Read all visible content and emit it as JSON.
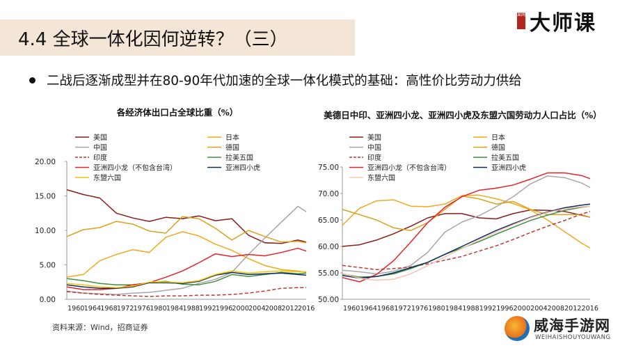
{
  "header": {
    "title": "4.4 全球一体化因何逆转？（三）",
    "logo_text": "大师课",
    "logo_seal": "某网"
  },
  "bullet": {
    "text": "二战后逐渐成型并在80-90年代加速的全球一体化模式的基础：高性价比劳动力供给"
  },
  "source": "资料来源：Wind，招商证券",
  "watermark": {
    "name": "威海手游网",
    "sub": "WEIHAISHOUYOUWANG"
  },
  "chart_data": [
    {
      "type": "line",
      "title": "各经济体出口占全球比重（%）",
      "ylim": [
        0,
        20
      ],
      "yticks": [
        "20.00",
        "15.00",
        "10.00",
        "5.00",
        "0.00"
      ],
      "xticks": [
        "1960",
        "1964",
        "1968",
        "1972",
        "1976",
        "1980",
        "1984",
        "1988",
        "1992",
        "1996",
        "2000",
        "2004",
        "2008",
        "2012",
        "2016"
      ],
      "x": [
        1960,
        1964,
        1968,
        1972,
        1976,
        1980,
        1984,
        1988,
        1992,
        1996,
        2000,
        2004,
        2008,
        2012,
        2016,
        2018
      ],
      "legend_position": "top",
      "series": [
        {
          "name": "美国",
          "color": "#8b1a1a",
          "dash": "",
          "values": [
            15.9,
            15.2,
            14.7,
            12.5,
            11.8,
            11.3,
            11.9,
            11.7,
            12.1,
            11.4,
            11.7,
            9.3,
            8.2,
            8.1,
            8.6,
            8.3
          ]
        },
        {
          "name": "日本",
          "color": "#f0a91f",
          "dash": "",
          "values": [
            3.2,
            3.6,
            5.6,
            6.5,
            7.2,
            6.8,
            9.0,
            9.8,
            9.2,
            8.0,
            7.1,
            5.9,
            4.9,
            4.3,
            4.1,
            3.9
          ]
        },
        {
          "name": "中国",
          "color": "#a6a6a6",
          "dash": "",
          "values": [
            1.2,
            0.9,
            0.8,
            0.7,
            0.9,
            1.0,
            1.3,
            1.6,
            2.3,
            2.9,
            3.9,
            6.5,
            8.9,
            11.2,
            13.5,
            12.7
          ]
        },
        {
          "name": "德国",
          "color": "#d9a21b",
          "dash": "",
          "values": [
            9.1,
            10.1,
            10.4,
            11.3,
            10.9,
            9.9,
            9.6,
            12.0,
            11.7,
            10.3,
            8.6,
            10.0,
            9.1,
            8.3,
            8.4,
            8.2
          ]
        },
        {
          "name": "印度",
          "color": "#c0392b",
          "dash": "5,3",
          "values": [
            1.1,
            0.9,
            0.7,
            0.6,
            0.5,
            0.4,
            0.5,
            0.5,
            0.6,
            0.6,
            0.7,
            0.9,
            1.2,
            1.6,
            1.7,
            1.7
          ]
        },
        {
          "name": "拉美五国",
          "color": "#3f8f3f",
          "dash": "",
          "values": [
            3.0,
            2.7,
            2.3,
            2.1,
            2.1,
            2.4,
            2.6,
            2.2,
            2.1,
            2.6,
            3.6,
            3.3,
            3.6,
            3.9,
            3.7,
            3.8
          ]
        },
        {
          "name": "亚洲四小龙（不包含台湾）",
          "color": "#e8202a",
          "dash": "",
          "values": [
            1.8,
            1.4,
            1.4,
            1.6,
            2.1,
            2.4,
            3.2,
            4.1,
            5.3,
            6.6,
            6.2,
            6.5,
            6.3,
            6.8,
            7.4,
            7.0
          ]
        },
        {
          "name": "亚洲四小虎",
          "color": "#0d2b5e",
          "dash": "",
          "values": [
            2.1,
            1.8,
            1.6,
            1.6,
            1.8,
            2.4,
            2.4,
            2.3,
            2.6,
            3.5,
            3.9,
            3.6,
            3.7,
            3.8,
            3.6,
            3.5
          ]
        },
        {
          "name": "东盟六国",
          "color": "#f4c400",
          "dash": "",
          "values": [
            2.3,
            2.1,
            1.8,
            1.7,
            1.9,
            2.5,
            2.5,
            2.4,
            2.7,
            3.6,
            4.1,
            3.8,
            4.0,
            4.1,
            4.0,
            4.0
          ]
        }
      ]
    },
    {
      "type": "line",
      "title": "美德日中印、亚洲四小龙、亚洲四小虎及东盟六国劳动力人口占比（%）",
      "ylim": [
        50,
        75
      ],
      "yticks": [
        "75.00",
        "70.00",
        "65.00",
        "60.00",
        "55.00",
        "50.00"
      ],
      "xticks": [
        "1960",
        "1964",
        "1968",
        "1972",
        "1976",
        "1980",
        "1984",
        "1988",
        "1992",
        "1996",
        "2000",
        "2004",
        "2008",
        "2012",
        "2016"
      ],
      "x": [
        1960,
        1964,
        1968,
        1972,
        1976,
        1980,
        1984,
        1988,
        1992,
        1996,
        2000,
        2004,
        2008,
        2012,
        2016,
        2018
      ],
      "legend_position": "top",
      "series": [
        {
          "name": "美国",
          "color": "#8b1a1a",
          "dash": "",
          "values": [
            60.0,
            60.3,
            61.2,
            62.4,
            63.8,
            65.4,
            66.2,
            66.2,
            65.4,
            65.2,
            66.2,
            66.9,
            66.8,
            66.6,
            65.9,
            65.5
          ]
        },
        {
          "name": "日本",
          "color": "#f0a91f",
          "dash": "",
          "values": [
            64.0,
            67.2,
            68.6,
            68.8,
            67.6,
            67.5,
            68.0,
            69.6,
            69.7,
            69.0,
            68.1,
            66.9,
            65.0,
            62.8,
            60.6,
            59.7
          ]
        },
        {
          "name": "中国",
          "color": "#a6a6a6",
          "dash": "",
          "values": [
            55.5,
            55.2,
            54.8,
            55.3,
            56.4,
            58.9,
            62.7,
            64.6,
            65.8,
            67.5,
            69.4,
            71.8,
            73.3,
            73.0,
            72.0,
            71.1
          ]
        },
        {
          "name": "德国",
          "color": "#d9a21b",
          "dash": "",
          "values": [
            67.0,
            66.0,
            65.0,
            63.5,
            63.0,
            64.5,
            67.0,
            69.5,
            69.0,
            68.0,
            68.5,
            67.0,
            66.0,
            66.0,
            66.0,
            65.5
          ]
        },
        {
          "name": "印度",
          "color": "#c0392b",
          "dash": "5,3",
          "values": [
            56.4,
            56.0,
            55.6,
            55.8,
            56.1,
            56.7,
            57.4,
            58.1,
            59.1,
            60.1,
            61.3,
            62.6,
            63.8,
            64.9,
            66.1,
            66.6
          ]
        },
        {
          "name": "拉美五国",
          "color": "#3f8f3f",
          "dash": "",
          "values": [
            54.8,
            54.2,
            54.3,
            54.8,
            55.8,
            57.0,
            58.5,
            59.7,
            60.9,
            62.3,
            63.6,
            64.9,
            65.9,
            66.8,
            67.4,
            67.6
          ]
        },
        {
          "name": "亚洲四小龙（不包含台湾）",
          "color": "#e8202a",
          "dash": "",
          "values": [
            54.1,
            53.3,
            54.7,
            57.3,
            60.8,
            64.5,
            67.4,
            69.4,
            70.6,
            71.0,
            71.6,
            72.7,
            73.9,
            73.9,
            73.4,
            72.8
          ]
        },
        {
          "name": "亚洲四小虎",
          "color": "#0d2b5e",
          "dash": "",
          "values": [
            54.5,
            54.0,
            54.3,
            55.0,
            56.0,
            57.0,
            58.5,
            60.0,
            61.5,
            63.0,
            64.3,
            65.5,
            66.5,
            67.3,
            67.8,
            68.0
          ]
        },
        {
          "name": "东盟六国",
          "color": "#f6c4b0",
          "dash": "",
          "values": [
            54.9,
            54.0,
            53.6,
            53.8,
            54.8,
            56.4,
            58.0,
            59.6,
            61.2,
            62.7,
            64.1,
            65.4,
            66.4,
            67.1,
            67.5,
            67.6
          ]
        }
      ]
    }
  ]
}
